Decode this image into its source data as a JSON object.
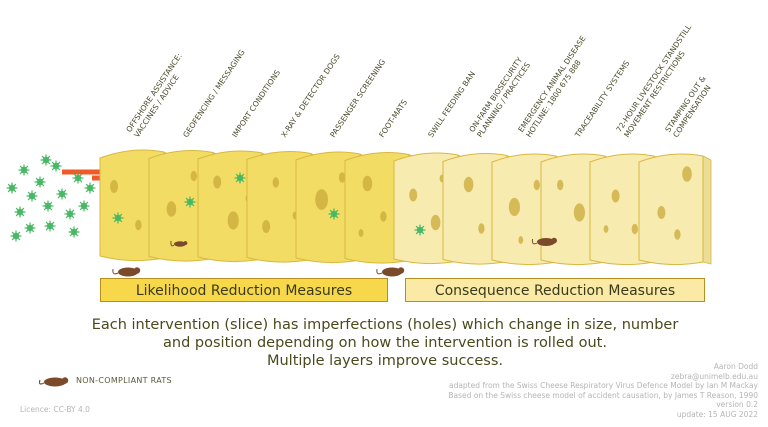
{
  "layers": [
    "OFFSHORE ASSISTANCE:\nVACCINES / ADVICE",
    "GEOFENCING / MESSAGING",
    "IMPORT CONDITIONS",
    "X-RAY & DETECTOR DOGS",
    "PASSENGER SCREENING",
    "FOOT-MATS",
    "SWILL FEEDING BAN",
    "ON-FARM BIOSECURITY\nPLANNING / PRACTICES",
    "EMERGENCY ANIMAL DISEASE\nHOTLINE: 1800 675 888",
    "TRACEABILITY SYSTEMS",
    "72-HOUR LIVESTOCK STANDSTILL\nMOVEMENT RESTRICTIONS",
    "STAMPING OUT &\nCOMPENSATION"
  ],
  "groups": {
    "likelihood": "Likelihood Reduction Measures",
    "consequence": "Consequence Reduction Measures"
  },
  "caption": [
    "Each intervention (slice) has imperfections (holes) which change in size, number",
    "and position depending on how the intervention is rolled out.",
    "Multiple layers improve success."
  ],
  "legend": {
    "label": "NON-COMPLIANT RATS"
  },
  "licence": "Licence: CC-BY 4.0",
  "credits": [
    "Aaron Dodd",
    "zebra@unimelb.edu.au",
    "adapted from the Swiss Cheese Respiratory Virus Defence Model by Ian M Mackay",
    "Based on the Swiss cheese model of accident causation, by James T Reason, 1990",
    "version 0.2",
    "update: 15 AUG 2022"
  ],
  "colors": {
    "cheese_dark": "#f3dc63",
    "cheese_light": "#f8ebb0",
    "cheese_edge": "#d8b840",
    "hole": "#c9a93a",
    "arrow": "#f05a28",
    "virus": "#49b865",
    "rat": "#7a4a2a"
  }
}
